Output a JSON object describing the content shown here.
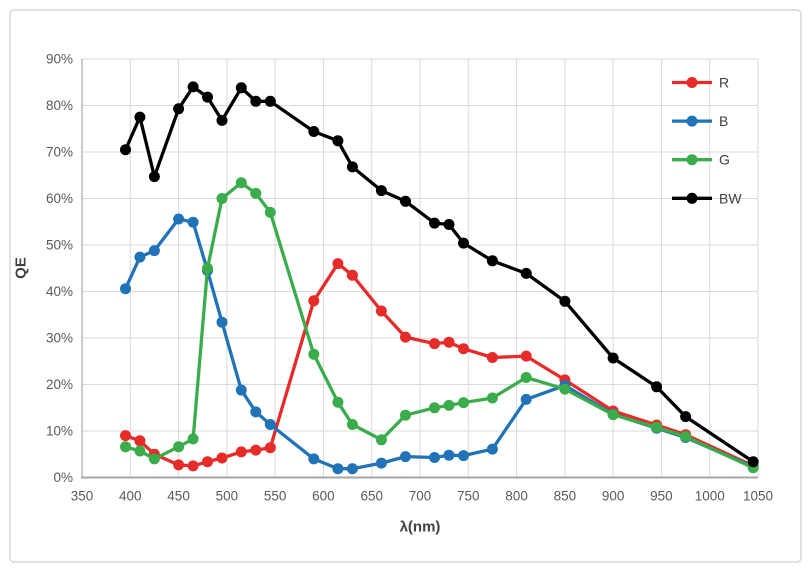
{
  "chart_data": {
    "type": "line",
    "title": "",
    "xlabel": "λ(nm)",
    "ylabel": "QE",
    "xlim": [
      350,
      1050
    ],
    "ylim_percent": [
      0,
      90
    ],
    "grid": true,
    "legend_position": "top-right-inside",
    "x_ticks": [
      350,
      400,
      450,
      500,
      550,
      600,
      650,
      700,
      750,
      800,
      850,
      900,
      950,
      1000,
      1050
    ],
    "x_tick_labels": [
      "350",
      "400",
      "450",
      "500",
      "550",
      "600",
      "650",
      "700",
      "750",
      "800",
      "850",
      "900",
      "950",
      "1000",
      "1050"
    ],
    "y_ticks": [
      0,
      10,
      20,
      30,
      40,
      50,
      60,
      70,
      80,
      90
    ],
    "y_tick_labels": [
      "0%",
      "10%",
      "20%",
      "30%",
      "40%",
      "50%",
      "60%",
      "70%",
      "80%",
      "90%"
    ],
    "series": [
      {
        "name": "R",
        "color": "#e72b28",
        "points": [
          [
            395,
            9
          ],
          [
            410,
            7.9
          ],
          [
            425,
            5
          ],
          [
            450,
            2.7
          ],
          [
            465,
            2.5
          ],
          [
            480,
            3.4
          ],
          [
            495,
            4.2
          ],
          [
            515,
            5.5
          ],
          [
            530,
            5.9
          ],
          [
            545,
            6.4
          ],
          [
            590,
            38
          ],
          [
            615,
            46
          ],
          [
            630,
            43.5
          ],
          [
            660,
            35.8
          ],
          [
            685,
            30.2
          ],
          [
            715,
            28.8
          ],
          [
            730,
            29.1
          ],
          [
            745,
            27.7
          ],
          [
            775,
            25.8
          ],
          [
            810,
            26.1
          ],
          [
            850,
            21
          ],
          [
            900,
            14.3
          ],
          [
            945,
            11.3
          ],
          [
            975,
            9.2
          ],
          [
            1045,
            2.5
          ]
        ]
      },
      {
        "name": "B",
        "color": "#2173b8",
        "points": [
          [
            395,
            40.6
          ],
          [
            410,
            47.4
          ],
          [
            425,
            48.8
          ],
          [
            450,
            55.6
          ],
          [
            465,
            54.9
          ],
          [
            480,
            44.5
          ],
          [
            495,
            33.4
          ],
          [
            515,
            18.8
          ],
          [
            530,
            14.1
          ],
          [
            545,
            11.4
          ],
          [
            590,
            4
          ],
          [
            615,
            1.9
          ],
          [
            630,
            1.9
          ],
          [
            660,
            3.1
          ],
          [
            685,
            4.5
          ],
          [
            715,
            4.3
          ],
          [
            730,
            4.8
          ],
          [
            745,
            4.7
          ],
          [
            775,
            6.1
          ],
          [
            810,
            16.8
          ],
          [
            850,
            19.8
          ],
          [
            900,
            13.6
          ],
          [
            945,
            10.6
          ],
          [
            975,
            8.6
          ],
          [
            1045,
            2.3
          ]
        ]
      },
      {
        "name": "G",
        "color": "#3bac4b",
        "points": [
          [
            395,
            6.6
          ],
          [
            410,
            5.7
          ],
          [
            425,
            4
          ],
          [
            450,
            6.6
          ],
          [
            465,
            8.3
          ],
          [
            480,
            45
          ],
          [
            495,
            60
          ],
          [
            515,
            63.4
          ],
          [
            530,
            61.1
          ],
          [
            545,
            57
          ],
          [
            590,
            26.5
          ],
          [
            615,
            16.2
          ],
          [
            630,
            11.4
          ],
          [
            660,
            8.1
          ],
          [
            685,
            13.4
          ],
          [
            715,
            15
          ],
          [
            730,
            15.5
          ],
          [
            745,
            16.1
          ],
          [
            775,
            17.1
          ],
          [
            810,
            21.5
          ],
          [
            850,
            19
          ],
          [
            900,
            13.5
          ],
          [
            945,
            10.8
          ],
          [
            975,
            8.8
          ],
          [
            1045,
            2.1
          ]
        ]
      },
      {
        "name": "BW",
        "color": "#000000",
        "points": [
          [
            395,
            70.5
          ],
          [
            410,
            77.5
          ],
          [
            425,
            64.7
          ],
          [
            450,
            79.3
          ],
          [
            465,
            84
          ],
          [
            480,
            81.8
          ],
          [
            495,
            76.8
          ],
          [
            515,
            83.8
          ],
          [
            530,
            80.9
          ],
          [
            545,
            80.9
          ],
          [
            590,
            74.4
          ],
          [
            615,
            72.4
          ],
          [
            630,
            66.8
          ],
          [
            660,
            61.7
          ],
          [
            685,
            59.4
          ],
          [
            715,
            54.7
          ],
          [
            730,
            54.4
          ],
          [
            745,
            50.4
          ],
          [
            775,
            46.6
          ],
          [
            810,
            43.9
          ],
          [
            850,
            37.9
          ],
          [
            900,
            25.7
          ],
          [
            945,
            19.5
          ],
          [
            975,
            13.1
          ],
          [
            1045,
            3.4
          ]
        ]
      }
    ],
    "legend_labels": [
      "R",
      "B",
      "G",
      "BW"
    ]
  },
  "colors": {
    "gridline": "#d9d9d9",
    "axis_line": "#a6a6a6",
    "tick_text": "#595959",
    "title_text": "#404040",
    "chart_border": "#d0cece",
    "background": "#ffffff"
  }
}
